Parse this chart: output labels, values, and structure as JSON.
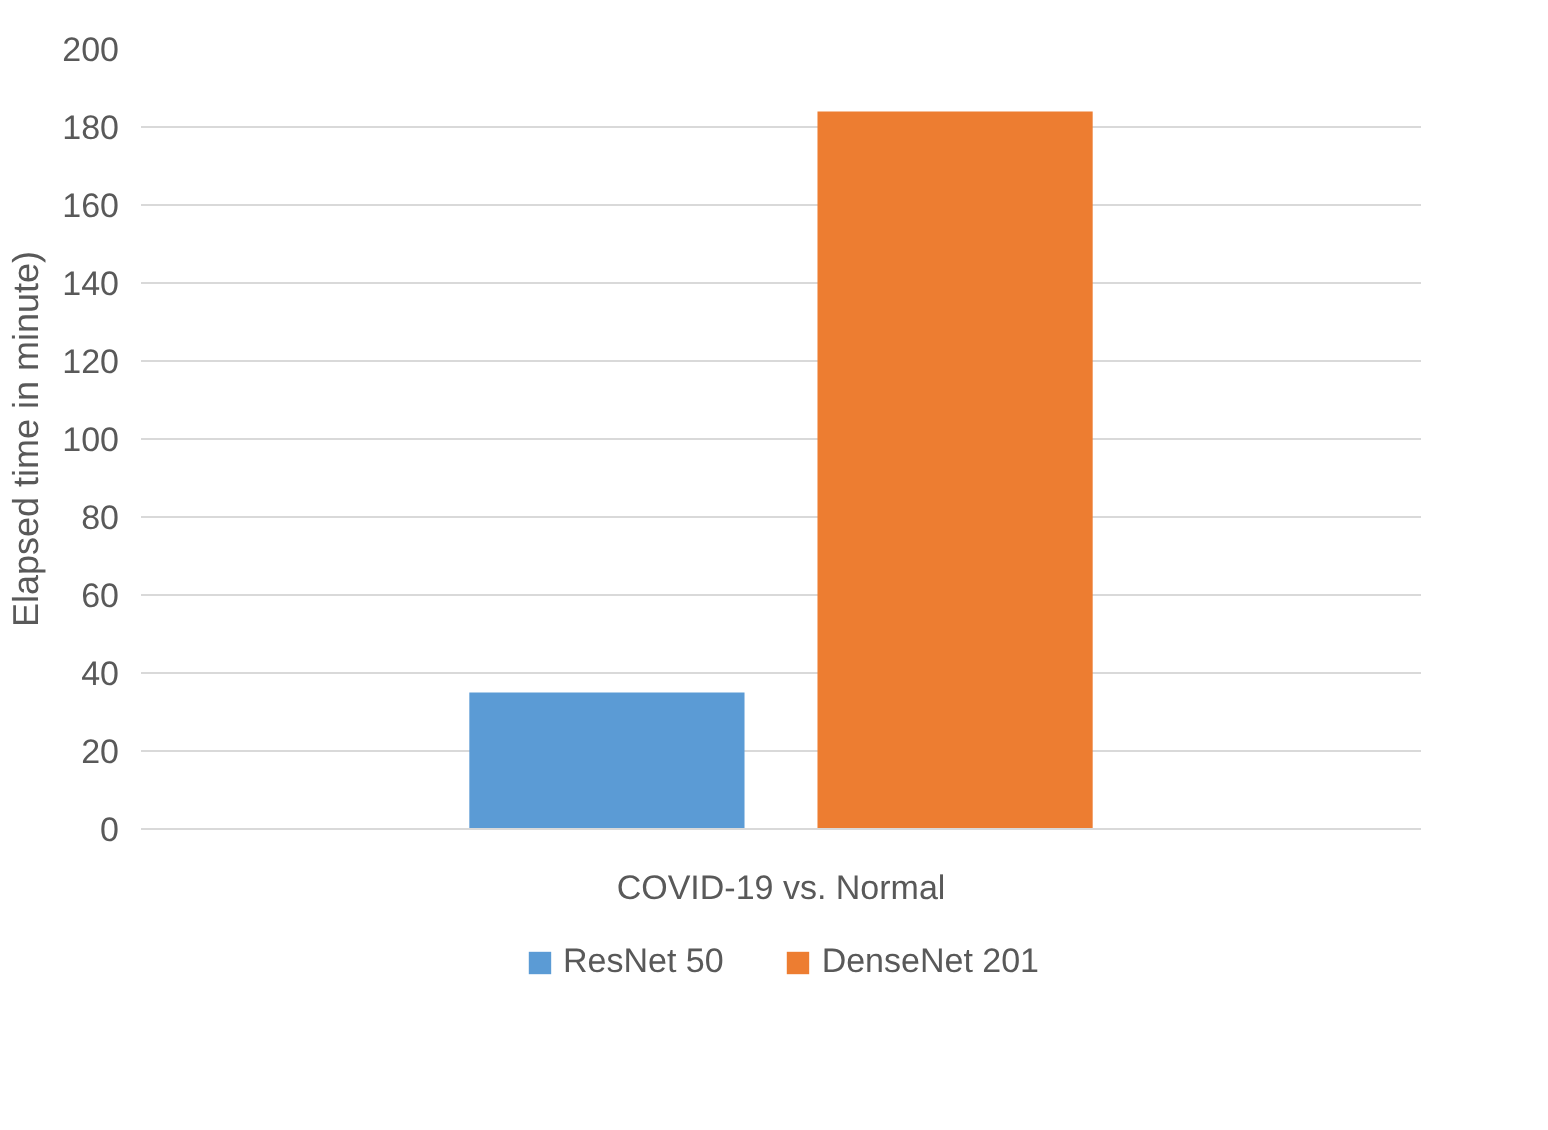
{
  "chart_data": {
    "type": "bar",
    "ylabel": "Elapsed time in minute)",
    "categories": [
      "COVID-19 vs. Normal"
    ],
    "series": [
      {
        "name": "ResNet 50",
        "color": "#5b9bd5",
        "values": [
          35
        ]
      },
      {
        "name": "DenseNet 201",
        "color": "#ed7d31",
        "values": [
          184
        ]
      }
    ],
    "ylim": [
      0,
      200
    ],
    "yticks": [
      0,
      20,
      40,
      60,
      80,
      100,
      120,
      140,
      160,
      180,
      200
    ],
    "grid": "y",
    "legend": "bottom"
  }
}
